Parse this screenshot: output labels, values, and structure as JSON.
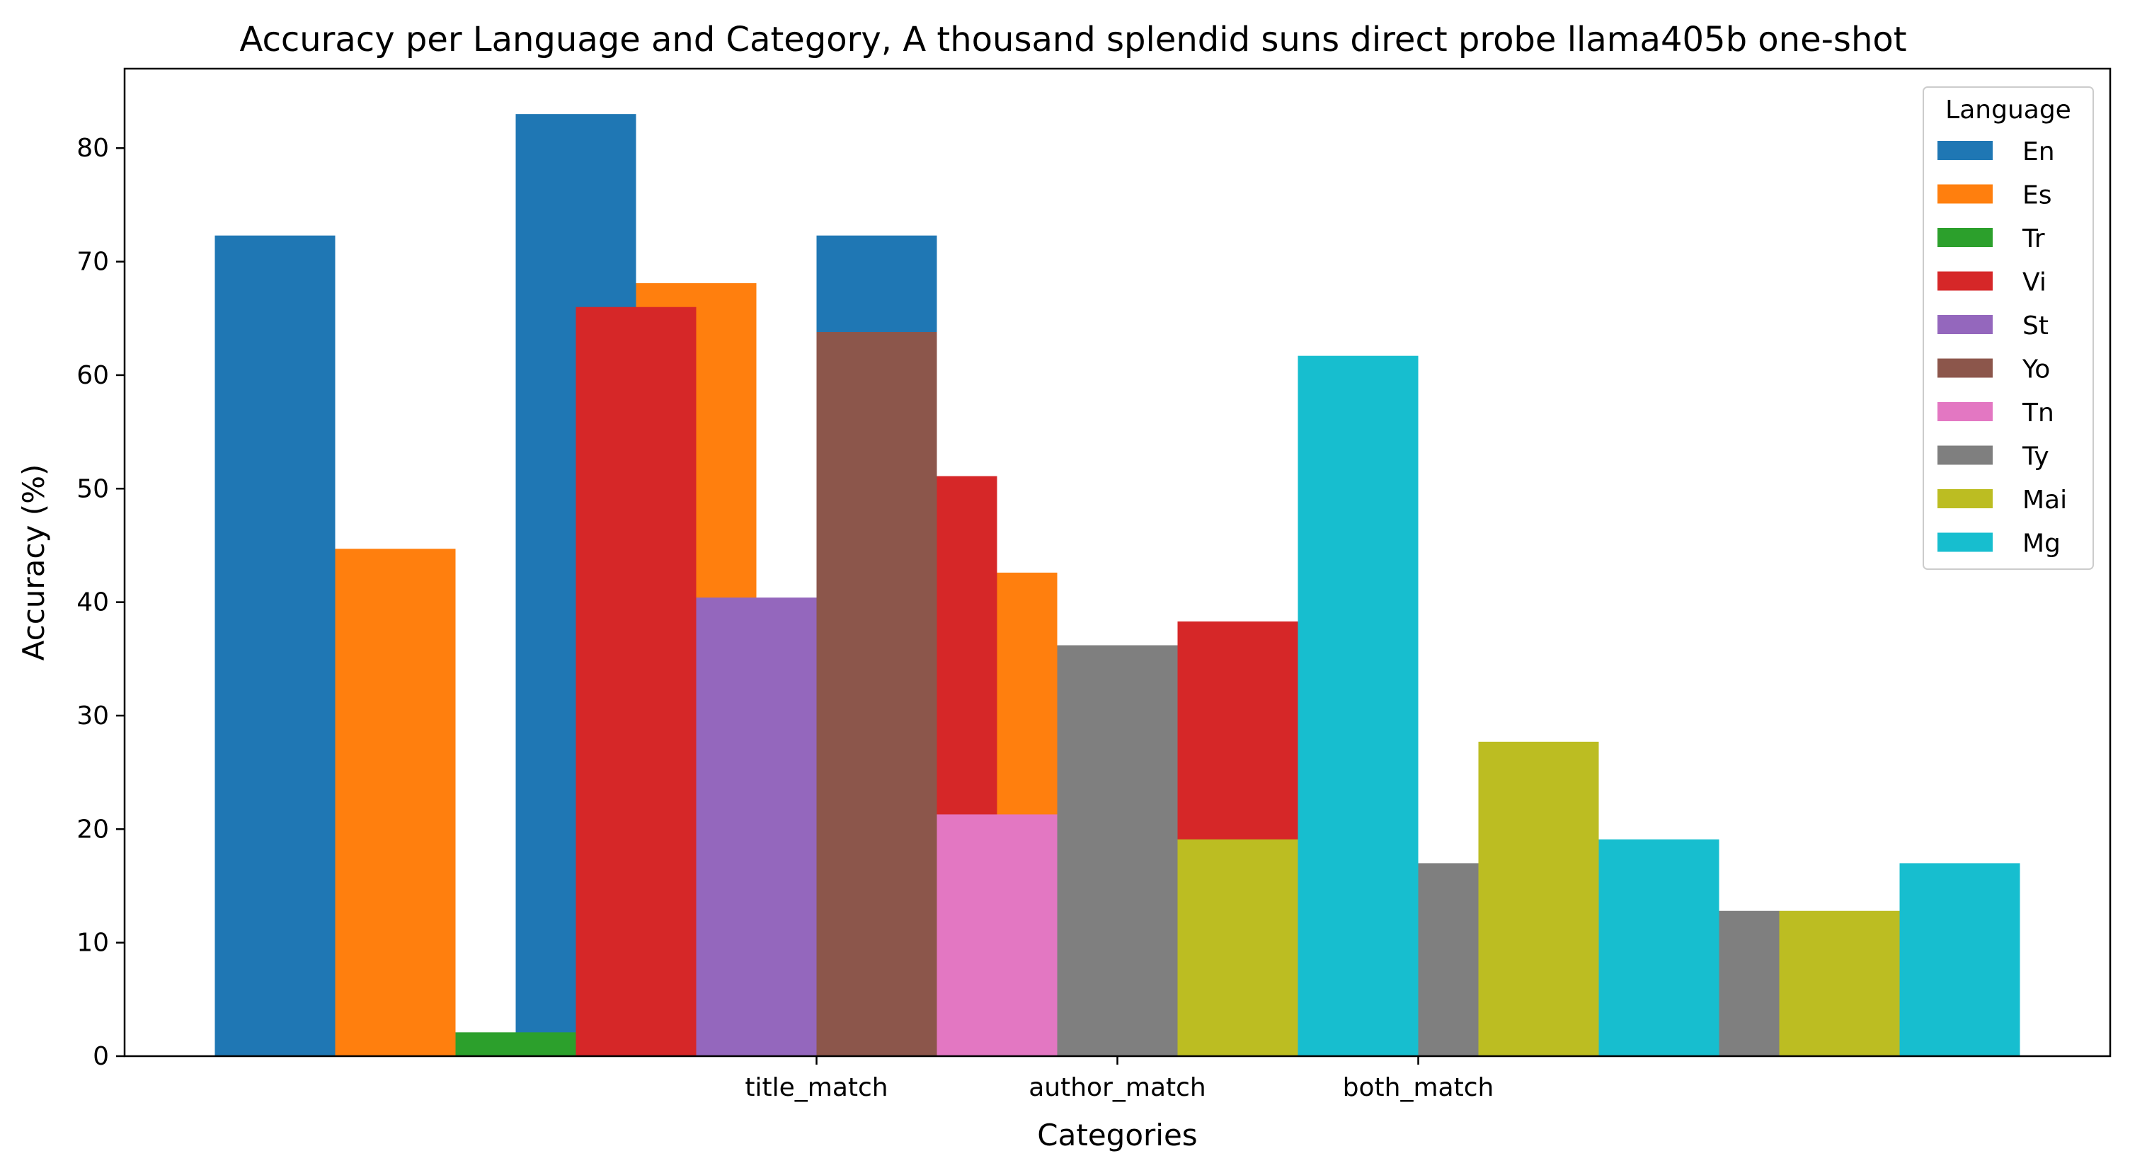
{
  "chart_data": {
    "type": "bar",
    "title": "Accuracy per Language and Category, A thousand splendid suns direct probe llama405b one-shot",
    "xlabel": "Categories",
    "ylabel": "Accuracy (%)",
    "categories": [
      "title_match",
      "author_match",
      "both_match"
    ],
    "ylim": [
      0,
      87
    ],
    "yticks": [
      0,
      10,
      20,
      30,
      40,
      50,
      60,
      70,
      80
    ],
    "legend": {
      "title": "Language",
      "position": "top-right"
    },
    "grid": false,
    "series": [
      {
        "name": "En",
        "color": "#1f77b4",
        "values": [
          72.3,
          83.0,
          72.3
        ]
      },
      {
        "name": "Es",
        "color": "#ff7f0e",
        "values": [
          44.7,
          68.1,
          42.6
        ]
      },
      {
        "name": "Tr",
        "color": "#2ca02c",
        "values": [
          2.1,
          0,
          0
        ]
      },
      {
        "name": "Vi",
        "color": "#d62728",
        "values": [
          66.0,
          51.1,
          38.3
        ]
      },
      {
        "name": "St",
        "color": "#9467bd",
        "values": [
          40.4,
          0,
          0
        ]
      },
      {
        "name": "Yo",
        "color": "#8c564b",
        "values": [
          63.8,
          6.4,
          4.3
        ]
      },
      {
        "name": "Tn",
        "color": "#e377c2",
        "values": [
          21.3,
          6.4,
          6.4
        ]
      },
      {
        "name": "Ty",
        "color": "#7f7f7f",
        "values": [
          36.2,
          17.0,
          12.8
        ]
      },
      {
        "name": "Mai",
        "color": "#bcbd22",
        "values": [
          19.1,
          27.7,
          12.8
        ]
      },
      {
        "name": "Mg",
        "color": "#17becf",
        "values": [
          61.7,
          19.1,
          17.0
        ]
      }
    ]
  }
}
